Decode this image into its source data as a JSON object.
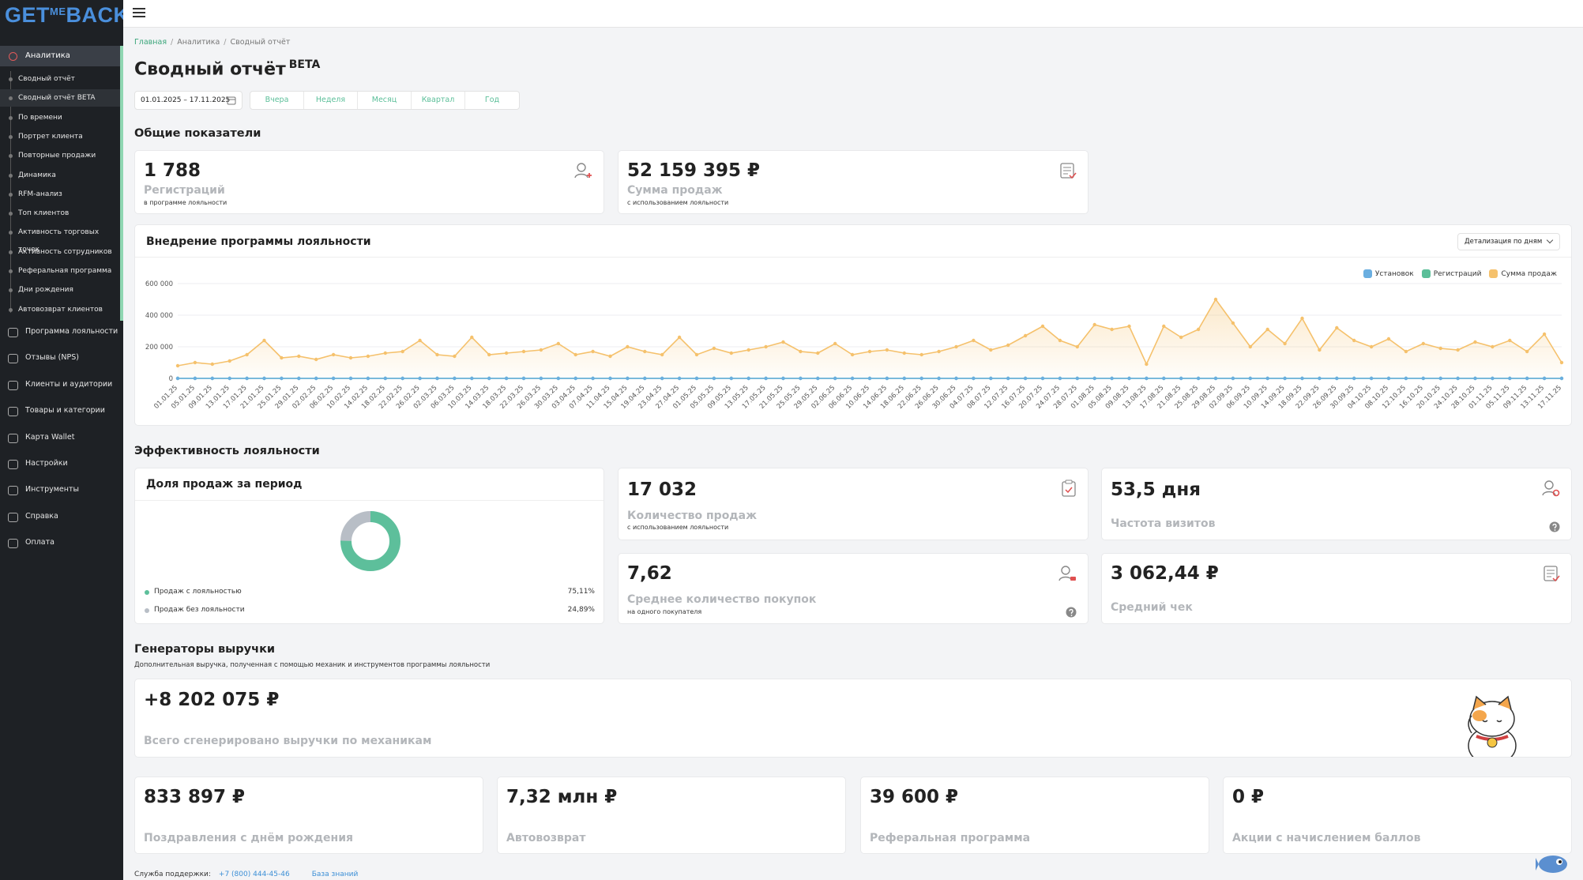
{
  "header": {
    "logo": [
      "GET",
      "ME",
      "BACK"
    ]
  },
  "sidebar": {
    "section": "Аналитика",
    "subitems": [
      "Сводный отчёт",
      "Сводный отчёт BETA",
      "По времени",
      "Портрет клиента",
      "Повторные продажи",
      "Динамика",
      "RFM-анализ",
      "Топ клиентов",
      "Активность торговых точек",
      "Активность сотрудников",
      "Реферальная программа",
      "Дни рождения",
      "Автовозврат клиентов"
    ],
    "items": [
      "Программа лояльности",
      "Отзывы (NPS)",
      "Клиенты и аудитории",
      "Товары и категории",
      "Карта Wallet",
      "Настройки",
      "Инструменты",
      "Справка",
      "Оплата"
    ]
  },
  "breadcrumb": [
    "Главная",
    "Аналитика",
    "Сводный отчёт"
  ],
  "page": {
    "title": "Сводный отчёт",
    "badge": "BETA",
    "date_range": "01.01.2025 – 17.11.2025",
    "periods": [
      "Вчера",
      "Неделя",
      "Месяц",
      "Квартал",
      "Год"
    ]
  },
  "general": {
    "heading": "Общие показатели",
    "cards": [
      {
        "value": "1 788",
        "label": "Регистраций",
        "sublabel": "в программе лояльности"
      },
      {
        "value": "52 159 395 ₽",
        "label": "Сумма продаж",
        "sublabel": "с использованием лояльности"
      }
    ]
  },
  "chart_data": [
    {
      "type": "line",
      "title": "Внедрение программы лояльности",
      "detail_select": "Детализация по дням",
      "categories": [
        "01.01.25",
        "05.01.25",
        "09.01.25",
        "13.01.25",
        "17.01.25",
        "21.01.25",
        "25.01.25",
        "29.01.25",
        "02.02.25",
        "06.02.25",
        "10.02.25",
        "14.02.25",
        "18.02.25",
        "22.02.25",
        "26.02.25",
        "02.03.25",
        "06.03.25",
        "10.03.25",
        "14.03.25",
        "18.03.25",
        "22.03.25",
        "26.03.25",
        "30.03.25",
        "03.04.25",
        "07.04.25",
        "11.04.25",
        "15.04.25",
        "19.04.25",
        "23.04.25",
        "27.04.25",
        "01.05.25",
        "05.05.25",
        "09.05.25",
        "13.05.25",
        "17.05.25",
        "21.05.25",
        "25.05.25",
        "29.05.25",
        "02.06.25",
        "06.06.25",
        "10.06.25",
        "14.06.25",
        "18.06.25",
        "22.06.25",
        "26.06.25",
        "30.06.25",
        "04.07.25",
        "08.07.25",
        "12.07.25",
        "16.07.25",
        "20.07.25",
        "24.07.25",
        "28.07.25",
        "01.08.25",
        "05.08.25",
        "09.08.25",
        "13.08.25",
        "17.08.25",
        "21.08.25",
        "25.08.25",
        "29.08.25",
        "02.09.25",
        "06.09.25",
        "10.09.25",
        "14.09.25",
        "18.09.25",
        "22.09.25",
        "26.09.25",
        "30.09.25",
        "04.10.25",
        "08.10.25",
        "12.10.25",
        "16.10.25",
        "20.10.25",
        "24.10.25",
        "28.10.25",
        "01.11.25",
        "05.11.25",
        "09.11.25",
        "13.11.25",
        "17.11.25"
      ],
      "series": [
        {
          "name": "Сумма продаж",
          "color": "#f5c16c",
          "area": true,
          "values": [
            80000,
            100000,
            90000,
            110000,
            150000,
            240000,
            130000,
            140000,
            120000,
            150000,
            130000,
            140000,
            160000,
            170000,
            240000,
            150000,
            140000,
            260000,
            150000,
            160000,
            170000,
            180000,
            220000,
            150000,
            170000,
            140000,
            200000,
            170000,
            150000,
            260000,
            150000,
            190000,
            160000,
            180000,
            200000,
            230000,
            170000,
            160000,
            220000,
            150000,
            170000,
            180000,
            160000,
            150000,
            170000,
            200000,
            240000,
            180000,
            210000,
            270000,
            330000,
            240000,
            200000,
            340000,
            310000,
            330000,
            90000,
            330000,
            260000,
            310000,
            500000,
            350000,
            200000,
            310000,
            220000,
            380000,
            180000,
            320000,
            240000,
            200000,
            250000,
            170000,
            220000,
            190000,
            180000,
            230000,
            200000,
            240000,
            170000,
            280000,
            100000
          ]
        },
        {
          "name": "Регистраций",
          "color": "#5bbf99",
          "values": [
            0,
            0,
            0,
            0,
            0,
            0,
            0,
            0,
            0,
            0,
            0,
            0,
            0,
            0,
            0,
            0,
            0,
            0,
            0,
            0,
            0,
            0,
            0,
            0,
            0,
            0,
            0,
            0,
            0,
            0,
            0,
            0,
            0,
            0,
            0,
            0,
            0,
            0,
            0,
            0,
            0,
            0,
            0,
            0,
            0,
            0,
            0,
            0,
            0,
            0,
            0,
            0,
            0,
            0,
            0,
            0,
            0,
            0,
            0,
            0,
            0,
            0,
            0,
            0,
            0,
            0,
            0,
            0,
            0,
            0,
            0,
            0,
            0,
            0,
            0,
            0,
            0,
            0,
            0,
            0,
            0
          ]
        },
        {
          "name": "Установок",
          "color": "#6aaee0",
          "values": [
            0,
            0,
            0,
            0,
            0,
            0,
            0,
            0,
            0,
            0,
            0,
            0,
            0,
            0,
            0,
            0,
            0,
            0,
            0,
            0,
            0,
            0,
            0,
            0,
            0,
            0,
            0,
            0,
            0,
            0,
            0,
            0,
            0,
            0,
            0,
            0,
            0,
            0,
            0,
            0,
            0,
            0,
            0,
            0,
            0,
            0,
            0,
            0,
            0,
            0,
            0,
            0,
            0,
            0,
            0,
            0,
            0,
            0,
            0,
            0,
            0,
            0,
            0,
            0,
            0,
            0,
            0,
            0,
            0,
            0,
            0,
            0,
            0,
            0,
            0,
            0,
            0,
            0,
            0,
            0,
            0
          ]
        }
      ],
      "legend_order": [
        2,
        1,
        0
      ],
      "ylim": [
        0,
        600000
      ],
      "yticks": [
        0,
        {
          "value": 200000,
          "label": "200 000"
        },
        {
          "value": 400000,
          "label": "400 000"
        },
        {
          "value": 600000,
          "label": "600 000"
        }
      ],
      "grid": true
    },
    {
      "type": "pie",
      "title": "Доля продаж за период",
      "categories": [
        "Продаж с лояльностью",
        "Продаж без лояльности"
      ],
      "values": [
        75.11,
        24.89
      ],
      "value_labels": [
        "75,11%",
        "24,89%"
      ],
      "colors": [
        "#5dbf9b",
        "#b8bec6"
      ],
      "donut": true
    }
  ],
  "efficiency": {
    "heading": "Эффективность лояльности",
    "cards": [
      {
        "value": "17 032",
        "label": "Количество продаж",
        "sublabel": "с использованием лояльности"
      },
      {
        "value": "53,5 дня",
        "label": "Частота визитов"
      },
      {
        "value": "7,62",
        "label": "Среднее количество покупок",
        "sublabel": "на одного покупателя"
      },
      {
        "value": "3 062,44 ₽",
        "label": "Средний чек"
      }
    ]
  },
  "generators": {
    "heading": "Генераторы выручки",
    "subtitle": "Дополнительная выручка, полученная с помощью механик и инструментов программы лояльности",
    "total": {
      "value": "+8 202 075 ₽",
      "label": "Всего сгенерировано выручки по механикам"
    },
    "cards": [
      {
        "value": "833 897 ₽",
        "label": "Поздравления с днём рождения"
      },
      {
        "value": "7,32 млн ₽",
        "label": "Автовозврат"
      },
      {
        "value": "39 600 ₽",
        "label": "Реферальная программа"
      },
      {
        "value": "0 ₽",
        "label": "Акции с начислением баллов"
      }
    ]
  },
  "footer": {
    "support_label": "Служба поддержки:",
    "phone": "+7 (800) 444-45-46",
    "knowledge_base": "База знаний"
  }
}
